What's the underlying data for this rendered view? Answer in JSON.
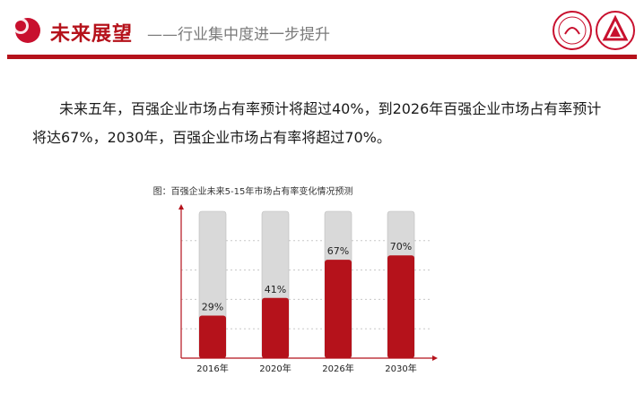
{
  "header": {
    "title_main": "未来展望",
    "title_sub": "——行业集中度进一步提升"
  },
  "body": {
    "paragraph": "未来五年，百强企业市场占有率预计将超过40%，到2026年百强企业市场占有率预计将达67%，2030年，百强企业市场占有率将超过70%。"
  },
  "chart_data": {
    "type": "bar",
    "title": "图：百强企业未来5-15年市场占有率变化情况预测",
    "categories": [
      "2016年",
      "2020年",
      "2026年",
      "2030年"
    ],
    "values": [
      29,
      41,
      67,
      70
    ],
    "data_labels": [
      "29%",
      "41%",
      "67%",
      "70%"
    ],
    "xlabel": "",
    "ylabel": "",
    "ylim": [
      0,
      100
    ],
    "grid": true,
    "colors": {
      "fill": "#b5121b",
      "background_bar": "#d9d9d9",
      "axis": "#b5121b"
    }
  }
}
